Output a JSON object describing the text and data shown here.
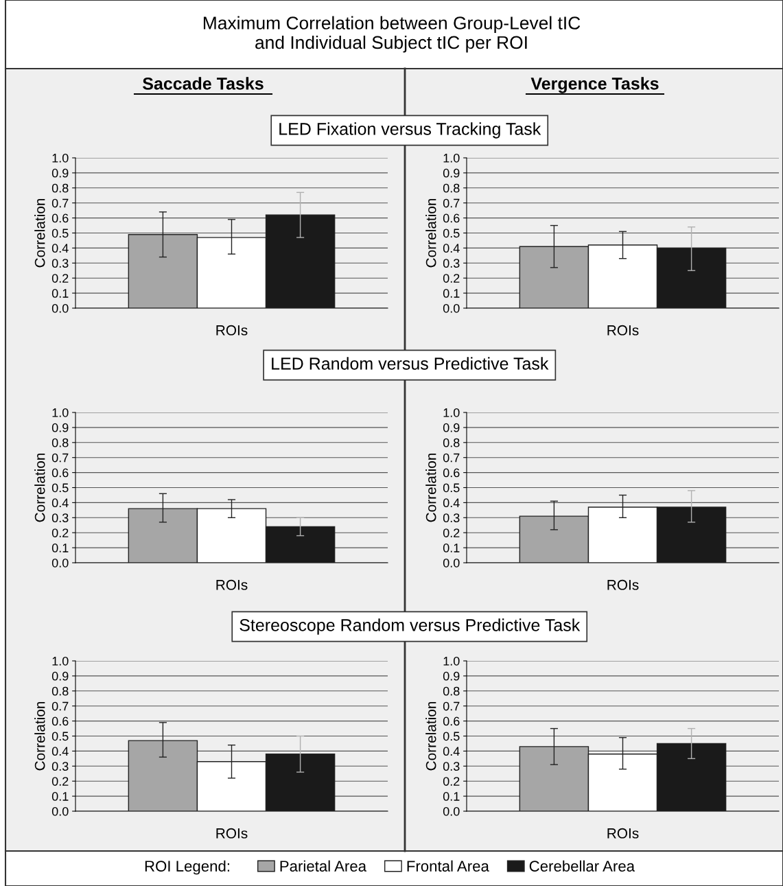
{
  "chart_data": [
    {
      "type": "bar",
      "title": "LED Fixation versus Tracking Task",
      "subtitle": "Saccade Tasks",
      "annotations": [
        "Maximum Correlation between Group-Level tIC\nand Individual Subject tIC per ROI"
      ],
      "legend_title": "ROI Legend:",
      "legend": "bottom",
      "categories": [
        null
      ],
      "xlabel": "ROIs",
      "ylabel": "Correlation",
      "ylim": [
        0,
        1
      ],
      "yticks": [
        {
          "value": 0,
          "label": "0.0"
        },
        {
          "value": 0.1,
          "label": "0.1"
        },
        {
          "value": 0.2,
          "label": "0.2"
        },
        {
          "value": 0.3,
          "label": "0.3"
        },
        {
          "value": 0.4,
          "label": "0.4"
        },
        {
          "value": 0.5,
          "label": "0.5"
        },
        {
          "value": 0.6,
          "label": "0.6"
        },
        {
          "value": 0.7,
          "label": "0.7"
        },
        {
          "value": 0.8,
          "label": "0.8"
        },
        {
          "value": 0.9,
          "label": "0.9"
        },
        {
          "value": 1,
          "label": "1.0"
        }
      ],
      "grid": "y",
      "series": [
        {
          "name": "Parietal Area",
          "color": "#a6a6a6",
          "values": [
            0.49
          ],
          "errors": [
            [
              0.34,
              0.64
            ]
          ]
        },
        {
          "name": "Frontal Area",
          "color": "#ffffff",
          "values": [
            0.47
          ],
          "errors": [
            [
              0.36,
              0.59
            ]
          ]
        },
        {
          "name": "Cerebellar Area",
          "color": "#1a1a1a",
          "values": [
            0.62
          ],
          "errors": [
            [
              0.47,
              0.77
            ]
          ]
        }
      ]
    },
    {
      "type": "bar",
      "subtitle": "Vergence Tasks",
      "categories": [
        null
      ],
      "xlabel": "ROIs",
      "ylabel": "Correlation",
      "ylim": [
        0,
        1
      ],
      "yticks": [
        {
          "value": 0,
          "label": "0.0"
        },
        {
          "value": 0.1,
          "label": "0.1"
        },
        {
          "value": 0.2,
          "label": "0.2"
        },
        {
          "value": 0.3,
          "label": "0.3"
        },
        {
          "value": 0.4,
          "label": "0.4"
        },
        {
          "value": 0.5,
          "label": "0.5"
        },
        {
          "value": 0.6,
          "label": "0.6"
        },
        {
          "value": 0.7,
          "label": "0.7"
        },
        {
          "value": 0.8,
          "label": "0.8"
        },
        {
          "value": 0.9,
          "label": "0.9"
        },
        {
          "value": 1,
          "label": "1.0"
        }
      ],
      "grid": "y",
      "series": [
        {
          "color": "#a6a6a6",
          "values": [
            0.41
          ],
          "errors": [
            [
              0.27,
              0.55
            ]
          ]
        },
        {
          "color": "#ffffff",
          "values": [
            0.42
          ],
          "errors": [
            [
              0.33,
              0.51
            ]
          ]
        },
        {
          "color": "#1a1a1a",
          "values": [
            0.4
          ],
          "errors": [
            [
              0.25,
              0.54
            ]
          ]
        }
      ]
    },
    {
      "type": "bar",
      "title": "LED Random versus Predictive Task",
      "categories": [
        null
      ],
      "xlabel": "ROIs",
      "ylabel": "Correlation",
      "ylim": [
        0,
        1
      ],
      "yticks": [
        {
          "value": 0,
          "label": "0.0"
        },
        {
          "value": 0.1,
          "label": "0.1"
        },
        {
          "value": 0.2,
          "label": "0.2"
        },
        {
          "value": 0.3,
          "label": "0.3"
        },
        {
          "value": 0.4,
          "label": "0.4"
        },
        {
          "value": 0.5,
          "label": "0.5"
        },
        {
          "value": 0.6,
          "label": "0.6"
        },
        {
          "value": 0.7,
          "label": "0.7"
        },
        {
          "value": 0.8,
          "label": "0.8"
        },
        {
          "value": 0.9,
          "label": "0.9"
        },
        {
          "value": 1,
          "label": "1.0"
        }
      ],
      "grid": "y",
      "series": [
        {
          "color": "#a6a6a6",
          "values": [
            0.36
          ],
          "errors": [
            [
              0.27,
              0.46
            ]
          ]
        },
        {
          "color": "#ffffff",
          "values": [
            0.36
          ],
          "errors": [
            [
              0.3,
              0.42
            ]
          ]
        },
        {
          "color": "#1a1a1a",
          "values": [
            0.24
          ],
          "errors": [
            [
              0.18,
              0.3
            ]
          ]
        }
      ]
    },
    {
      "type": "bar",
      "categories": [
        null
      ],
      "xlabel": "ROIs",
      "ylabel": "Correlation",
      "ylim": [
        0,
        1
      ],
      "yticks": [
        {
          "value": 0,
          "label": "0.0"
        },
        {
          "value": 0.1,
          "label": "0.1"
        },
        {
          "value": 0.2,
          "label": "0.2"
        },
        {
          "value": 0.3,
          "label": "0.3"
        },
        {
          "value": 0.4,
          "label": "0.4"
        },
        {
          "value": 0.5,
          "label": "0.5"
        },
        {
          "value": 0.6,
          "label": "0.6"
        },
        {
          "value": 0.7,
          "label": "0.7"
        },
        {
          "value": 0.8,
          "label": "0.8"
        },
        {
          "value": 0.9,
          "label": "0.9"
        },
        {
          "value": 1,
          "label": "1.0"
        }
      ],
      "grid": "y",
      "series": [
        {
          "color": "#a6a6a6",
          "values": [
            0.31
          ],
          "errors": [
            [
              0.22,
              0.41
            ]
          ]
        },
        {
          "color": "#ffffff",
          "values": [
            0.37
          ],
          "errors": [
            [
              0.3,
              0.45
            ]
          ]
        },
        {
          "color": "#1a1a1a",
          "values": [
            0.37
          ],
          "errors": [
            [
              0.27,
              0.48
            ]
          ]
        }
      ]
    },
    {
      "type": "bar",
      "title": "Stereoscope Random versus Predictive Task",
      "categories": [
        null
      ],
      "xlabel": "ROIs",
      "ylabel": "Correlation",
      "ylim": [
        0,
        1
      ],
      "yticks": [
        {
          "value": 0,
          "label": "0.0"
        },
        {
          "value": 0.1,
          "label": "0.1"
        },
        {
          "value": 0.2,
          "label": "0.2"
        },
        {
          "value": 0.3,
          "label": "0.3"
        },
        {
          "value": 0.4,
          "label": "0.4"
        },
        {
          "value": 0.5,
          "label": "0.5"
        },
        {
          "value": 0.6,
          "label": "0.6"
        },
        {
          "value": 0.7,
          "label": "0.7"
        },
        {
          "value": 0.8,
          "label": "0.8"
        },
        {
          "value": 0.9,
          "label": "0.9"
        },
        {
          "value": 1,
          "label": "1.0"
        }
      ],
      "grid": "y",
      "series": [
        {
          "color": "#a6a6a6",
          "values": [
            0.47
          ],
          "errors": [
            [
              0.36,
              0.59
            ]
          ]
        },
        {
          "color": "#ffffff",
          "values": [
            0.33
          ],
          "errors": [
            [
              0.22,
              0.44
            ]
          ]
        },
        {
          "color": "#1a1a1a",
          "values": [
            0.38
          ],
          "errors": [
            [
              0.26,
              0.5
            ]
          ]
        }
      ]
    },
    {
      "type": "bar",
      "categories": [
        null
      ],
      "xlabel": "ROIs",
      "ylabel": "Correlation",
      "ylim": [
        0,
        1
      ],
      "yticks": [
        {
          "value": 0,
          "label": "0.0"
        },
        {
          "value": 0.1,
          "label": "0.1"
        },
        {
          "value": 0.2,
          "label": "0.2"
        },
        {
          "value": 0.3,
          "label": "0.3"
        },
        {
          "value": 0.4,
          "label": "0.4"
        },
        {
          "value": 0.5,
          "label": "0.5"
        },
        {
          "value": 0.6,
          "label": "0.6"
        },
        {
          "value": 0.7,
          "label": "0.7"
        },
        {
          "value": 0.8,
          "label": "0.8"
        },
        {
          "value": 0.9,
          "label": "0.9"
        },
        {
          "value": 1,
          "label": "1.0"
        }
      ],
      "grid": "y",
      "series": [
        {
          "color": "#a6a6a6",
          "values": [
            0.43
          ],
          "errors": [
            [
              0.31,
              0.55
            ]
          ]
        },
        {
          "color": "#ffffff",
          "values": [
            0.38
          ],
          "errors": [
            [
              0.28,
              0.49
            ]
          ]
        },
        {
          "color": "#1a1a1a",
          "values": [
            0.45
          ],
          "errors": [
            [
              0.35,
              0.55
            ]
          ]
        }
      ]
    }
  ]
}
